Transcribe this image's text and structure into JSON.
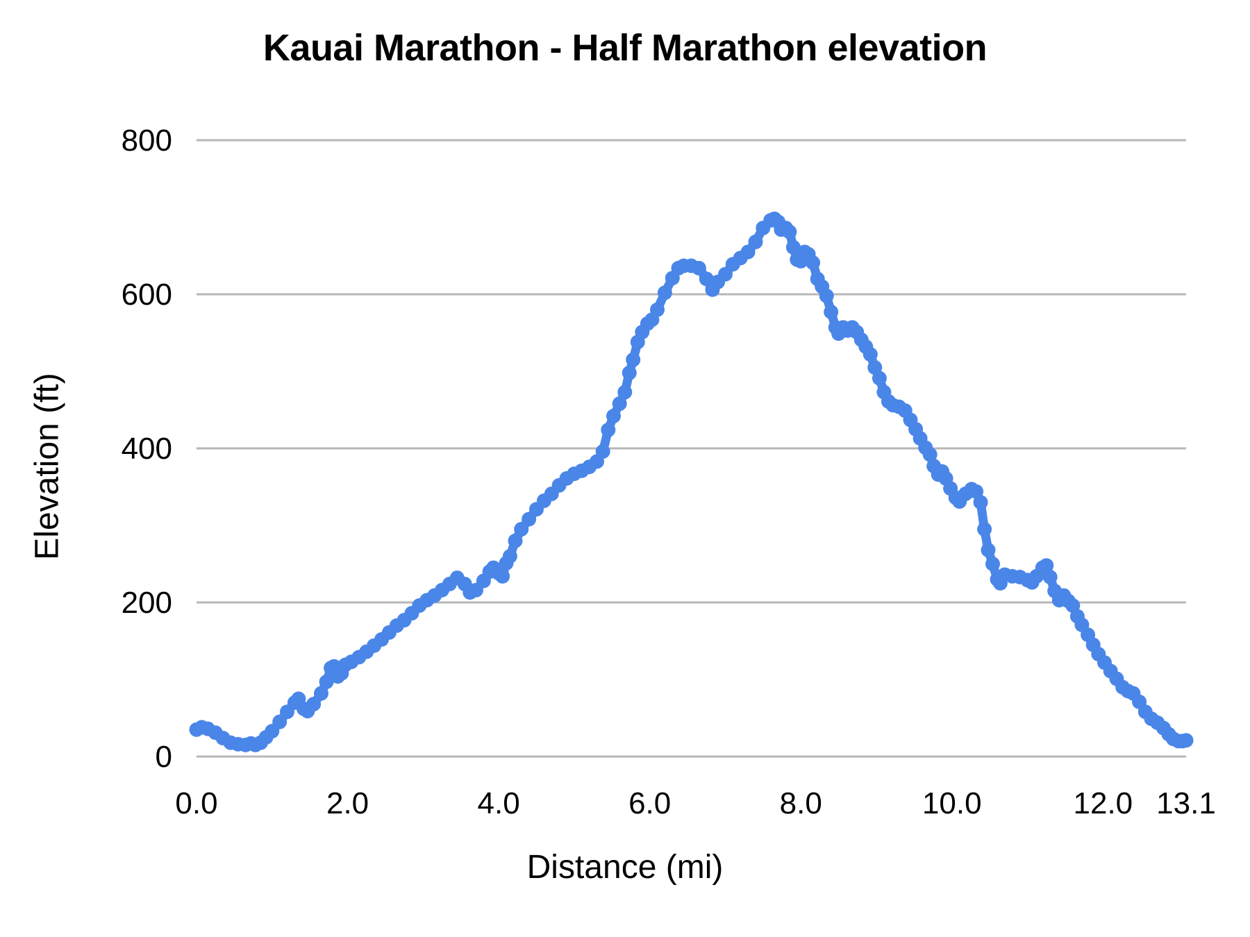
{
  "chart_data": {
    "type": "line",
    "title": "Kauai Marathon - Half Marathon elevation",
    "xlabel": "Distance (mi)",
    "ylabel": "Elevation (ft)",
    "xlim": [
      0,
      13.1
    ],
    "ylim": [
      0,
      800
    ],
    "grid": "horizontal",
    "legend": "none",
    "x_ticks": [
      {
        "value": 0.0,
        "label": "0.0"
      },
      {
        "value": 2.0,
        "label": "2.0"
      },
      {
        "value": 4.0,
        "label": "4.0"
      },
      {
        "value": 6.0,
        "label": "6.0"
      },
      {
        "value": 8.0,
        "label": "8.0"
      },
      {
        "value": 10.0,
        "label": "10.0"
      },
      {
        "value": 12.0,
        "label": "12.0"
      },
      {
        "value": 13.1,
        "label": "13.1"
      }
    ],
    "y_ticks": [
      {
        "value": 0,
        "label": "0"
      },
      {
        "value": 200,
        "label": "200"
      },
      {
        "value": 400,
        "label": "400"
      },
      {
        "value": 600,
        "label": "600"
      },
      {
        "value": 800,
        "label": "800"
      }
    ],
    "series": [
      {
        "name": "elevation",
        "color": "#4a86e8",
        "points": [
          [
            0.0,
            35
          ],
          [
            0.07,
            38
          ],
          [
            0.15,
            36
          ],
          [
            0.25,
            31
          ],
          [
            0.35,
            24
          ],
          [
            0.45,
            18
          ],
          [
            0.55,
            16
          ],
          [
            0.65,
            15
          ],
          [
            0.72,
            17
          ],
          [
            0.78,
            15
          ],
          [
            0.85,
            18
          ],
          [
            0.92,
            25
          ],
          [
            1.0,
            33
          ],
          [
            1.1,
            45
          ],
          [
            1.2,
            58
          ],
          [
            1.3,
            70
          ],
          [
            1.35,
            75
          ],
          [
            1.42,
            62
          ],
          [
            1.47,
            59
          ],
          [
            1.55,
            68
          ],
          [
            1.65,
            82
          ],
          [
            1.72,
            97
          ],
          [
            1.78,
            115
          ],
          [
            1.82,
            117
          ],
          [
            1.87,
            104
          ],
          [
            1.92,
            108
          ],
          [
            1.97,
            119
          ],
          [
            2.05,
            123
          ],
          [
            2.15,
            129
          ],
          [
            2.25,
            136
          ],
          [
            2.35,
            144
          ],
          [
            2.45,
            152
          ],
          [
            2.55,
            161
          ],
          [
            2.65,
            170
          ],
          [
            2.75,
            177
          ],
          [
            2.85,
            186
          ],
          [
            2.95,
            196
          ],
          [
            3.05,
            203
          ],
          [
            3.15,
            209
          ],
          [
            3.25,
            216
          ],
          [
            3.35,
            224
          ],
          [
            3.45,
            232
          ],
          [
            3.55,
            224
          ],
          [
            3.62,
            213
          ],
          [
            3.7,
            216
          ],
          [
            3.8,
            228
          ],
          [
            3.88,
            240
          ],
          [
            3.93,
            245
          ],
          [
            4.0,
            238
          ],
          [
            4.05,
            234
          ],
          [
            4.1,
            251
          ],
          [
            4.15,
            260
          ],
          [
            4.22,
            280
          ],
          [
            4.3,
            295
          ],
          [
            4.4,
            308
          ],
          [
            4.5,
            321
          ],
          [
            4.6,
            332
          ],
          [
            4.7,
            341
          ],
          [
            4.8,
            352
          ],
          [
            4.9,
            361
          ],
          [
            5.0,
            367
          ],
          [
            5.1,
            371
          ],
          [
            5.2,
            376
          ],
          [
            5.3,
            383
          ],
          [
            5.38,
            396
          ],
          [
            5.45,
            424
          ],
          [
            5.52,
            442
          ],
          [
            5.6,
            458
          ],
          [
            5.67,
            473
          ],
          [
            5.73,
            498
          ],
          [
            5.78,
            515
          ],
          [
            5.84,
            538
          ],
          [
            5.9,
            551
          ],
          [
            5.97,
            562
          ],
          [
            6.03,
            567
          ],
          [
            6.1,
            580
          ],
          [
            6.2,
            602
          ],
          [
            6.3,
            621
          ],
          [
            6.38,
            634
          ],
          [
            6.45,
            637
          ],
          [
            6.55,
            637
          ],
          [
            6.65,
            634
          ],
          [
            6.75,
            620
          ],
          [
            6.83,
            606
          ],
          [
            6.9,
            616
          ],
          [
            7.0,
            626
          ],
          [
            7.1,
            639
          ],
          [
            7.2,
            647
          ],
          [
            7.3,
            655
          ],
          [
            7.4,
            668
          ],
          [
            7.5,
            686
          ],
          [
            7.6,
            696
          ],
          [
            7.65,
            698
          ],
          [
            7.7,
            694
          ],
          [
            7.74,
            684
          ],
          [
            7.8,
            686
          ],
          [
            7.85,
            681
          ],
          [
            7.9,
            661
          ],
          [
            7.95,
            645
          ],
          [
            8.0,
            643
          ],
          [
            8.05,
            655
          ],
          [
            8.1,
            652
          ],
          [
            8.16,
            641
          ],
          [
            8.22,
            620
          ],
          [
            8.28,
            610
          ],
          [
            8.34,
            598
          ],
          [
            8.4,
            577
          ],
          [
            8.46,
            557
          ],
          [
            8.5,
            549
          ],
          [
            8.56,
            557
          ],
          [
            8.62,
            553
          ],
          [
            8.68,
            557
          ],
          [
            8.74,
            551
          ],
          [
            8.8,
            541
          ],
          [
            8.86,
            532
          ],
          [
            8.92,
            522
          ],
          [
            8.98,
            505
          ],
          [
            9.04,
            491
          ],
          [
            9.1,
            473
          ],
          [
            9.16,
            461
          ],
          [
            9.22,
            456
          ],
          [
            9.3,
            454
          ],
          [
            9.38,
            449
          ],
          [
            9.45,
            437
          ],
          [
            9.52,
            425
          ],
          [
            9.58,
            413
          ],
          [
            9.65,
            401
          ],
          [
            9.71,
            392
          ],
          [
            9.76,
            377
          ],
          [
            9.82,
            366
          ],
          [
            9.87,
            370
          ],
          [
            9.92,
            361
          ],
          [
            9.98,
            348
          ],
          [
            10.05,
            336
          ],
          [
            10.1,
            331
          ],
          [
            10.18,
            341
          ],
          [
            10.26,
            347
          ],
          [
            10.32,
            344
          ],
          [
            10.38,
            330
          ],
          [
            10.43,
            295
          ],
          [
            10.48,
            268
          ],
          [
            10.54,
            250
          ],
          [
            10.6,
            230
          ],
          [
            10.64,
            225
          ],
          [
            10.7,
            236
          ],
          [
            10.8,
            234
          ],
          [
            10.9,
            233
          ],
          [
            11.0,
            229
          ],
          [
            11.06,
            226
          ],
          [
            11.12,
            234
          ],
          [
            11.2,
            245
          ],
          [
            11.25,
            248
          ],
          [
            11.3,
            233
          ],
          [
            11.36,
            215
          ],
          [
            11.42,
            203
          ],
          [
            11.48,
            209
          ],
          [
            11.54,
            202
          ],
          [
            11.6,
            196
          ],
          [
            11.66,
            182
          ],
          [
            11.72,
            171
          ],
          [
            11.8,
            158
          ],
          [
            11.87,
            145
          ],
          [
            11.94,
            133
          ],
          [
            12.02,
            122
          ],
          [
            12.1,
            111
          ],
          [
            12.18,
            101
          ],
          [
            12.26,
            90
          ],
          [
            12.33,
            85
          ],
          [
            12.4,
            82
          ],
          [
            12.48,
            71
          ],
          [
            12.56,
            58
          ],
          [
            12.64,
            49
          ],
          [
            12.72,
            44
          ],
          [
            12.8,
            37
          ],
          [
            12.87,
            29
          ],
          [
            12.93,
            23
          ],
          [
            13.0,
            20
          ],
          [
            13.05,
            20
          ],
          [
            13.1,
            21
          ]
        ]
      }
    ]
  },
  "colors": {
    "line": "#4a86e8",
    "gridline": "#b7b7b7",
    "text": "#000000",
    "background": "#ffffff"
  }
}
